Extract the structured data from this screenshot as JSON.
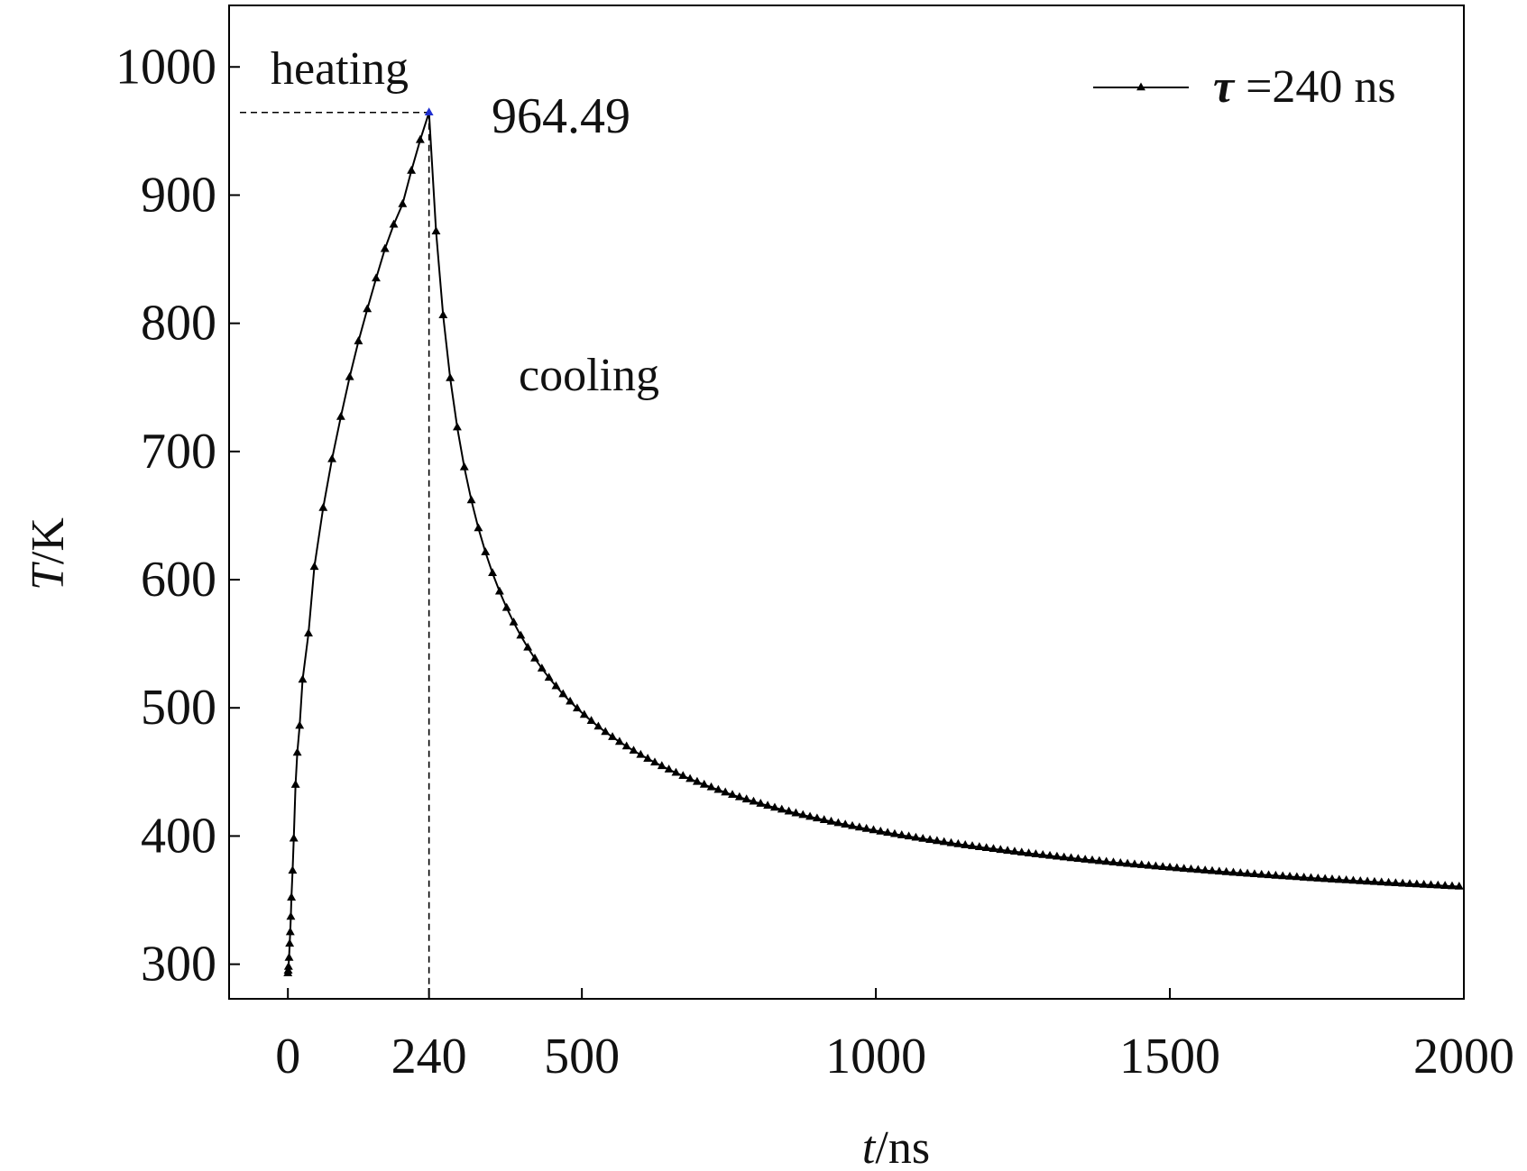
{
  "chart_data": {
    "type": "line",
    "xlabel": "ns",
    "xlabel_italic": "t",
    "ylabel": "K",
    "ylabel_italic": "T",
    "xlim": [
      -100,
      2000
    ],
    "ylim": [
      273,
      1048
    ],
    "xticks": [
      0,
      240,
      500,
      1000,
      1500,
      2000
    ],
    "yticks": [
      300,
      400,
      500,
      600,
      700,
      800,
      900,
      1000
    ],
    "grid": false,
    "legend_position": "top-right",
    "annotations": {
      "heating": "heating",
      "cooling": "cooling",
      "peak_label": "964.49"
    },
    "peak": {
      "x": 240,
      "y": 964.49
    },
    "series": [
      {
        "name": "τ =240 ns",
        "legend_symbol": "τ",
        "legend_text": " =240 ns",
        "color": "#000000",
        "marker": "triangle",
        "heating": {
          "x": [
            0,
            0.5,
            1,
            2,
            3,
            4,
            5,
            6,
            8,
            10,
            13,
            16,
            20,
            25,
            35,
            45,
            60,
            75,
            90,
            105,
            120,
            135,
            150,
            165,
            180,
            195,
            210,
            225,
            240
          ],
          "y": [
            293,
            295,
            298,
            305,
            316,
            325,
            337,
            352,
            373,
            398,
            440,
            465,
            486,
            522,
            558,
            610,
            656,
            694,
            727,
            758,
            786,
            811,
            835,
            858,
            877,
            893,
            919,
            943,
            964.49
          ]
        },
        "cooling": {
          "t0": 240,
          "y0": 964.49,
          "y_inf": 293,
          "k": 0.0226,
          "p": 0.62,
          "x_start": 252,
          "x_end": 2000,
          "step": 12
        }
      }
    ]
  }
}
